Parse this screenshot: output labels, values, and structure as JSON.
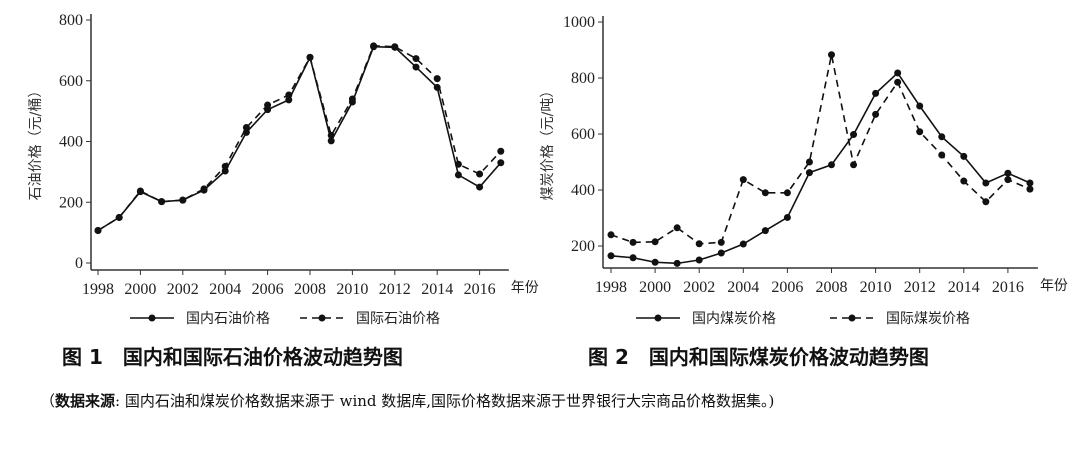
{
  "chart_data": [
    {
      "type": "line",
      "title": "图 1　国内和国际石油价格波动趋势图",
      "xlabel": "年份",
      "ylabel": "石油价格（元/桶）",
      "x": [
        1998,
        1999,
        2000,
        2001,
        2002,
        2003,
        2004,
        2005,
        2006,
        2007,
        2008,
        2009,
        2010,
        2011,
        2012,
        2013,
        2014,
        2015,
        2016,
        2017
      ],
      "xticks": [
        "1998",
        "2000",
        "2002",
        "2004",
        "2006",
        "2008",
        "2010",
        "2012",
        "2014",
        "2016"
      ],
      "yticks": [
        "0",
        "200",
        "400",
        "600",
        "800"
      ],
      "ylim": [
        0,
        800
      ],
      "grid": false,
      "legend": "bottom",
      "series": [
        {
          "name": "国内石油价格",
          "style": "solid",
          "values": [
            107,
            150,
            235,
            202,
            207,
            240,
            303,
            430,
            505,
            537,
            677,
            402,
            530,
            712,
            710,
            645,
            578,
            290,
            250,
            330
          ]
        },
        {
          "name": "国际石油价格",
          "style": "dashed",
          "values": [
            107,
            150,
            237,
            202,
            207,
            244,
            318,
            446,
            520,
            553,
            677,
            420,
            540,
            715,
            712,
            673,
            607,
            325,
            293,
            368
          ]
        }
      ]
    },
    {
      "type": "line",
      "title": "图 2　国内和国际煤炭价格波动趋势图",
      "xlabel": "年份",
      "ylabel": "煤炭价格（元/吨）",
      "x": [
        1998,
        1999,
        2000,
        2001,
        2002,
        2003,
        2004,
        2005,
        2006,
        2007,
        2008,
        2009,
        2010,
        2011,
        2012,
        2013,
        2014,
        2015,
        2016,
        2017
      ],
      "xticks": [
        "1998",
        "2000",
        "2002",
        "2004",
        "2006",
        "2008",
        "2010",
        "2012",
        "2014",
        "2016"
      ],
      "yticks": [
        "200",
        "400",
        "600",
        "800",
        "1000"
      ],
      "ylim": [
        115,
        1000
      ],
      "grid": false,
      "legend": "bottom",
      "series": [
        {
          "name": "国内煤炭价格",
          "style": "solid",
          "values": [
            165,
            158,
            142,
            138,
            150,
            175,
            207,
            255,
            302,
            462,
            490,
            598,
            745,
            818,
            700,
            590,
            520,
            425,
            460,
            425
          ]
        },
        {
          "name": "国际煤炭价格",
          "style": "dashed",
          "values": [
            240,
            213,
            215,
            265,
            208,
            213,
            437,
            390,
            390,
            500,
            883,
            490,
            670,
            785,
            608,
            525,
            432,
            358,
            437,
            403
          ]
        }
      ]
    }
  ],
  "note": {
    "open": "（",
    "label": "数据来源",
    "text": ": 国内石油和煤炭价格数据来源于 wind 数据库,国际价格数据来源于世界银行大宗商品价格数据集。)"
  },
  "colors": {
    "line": "#111111"
  }
}
